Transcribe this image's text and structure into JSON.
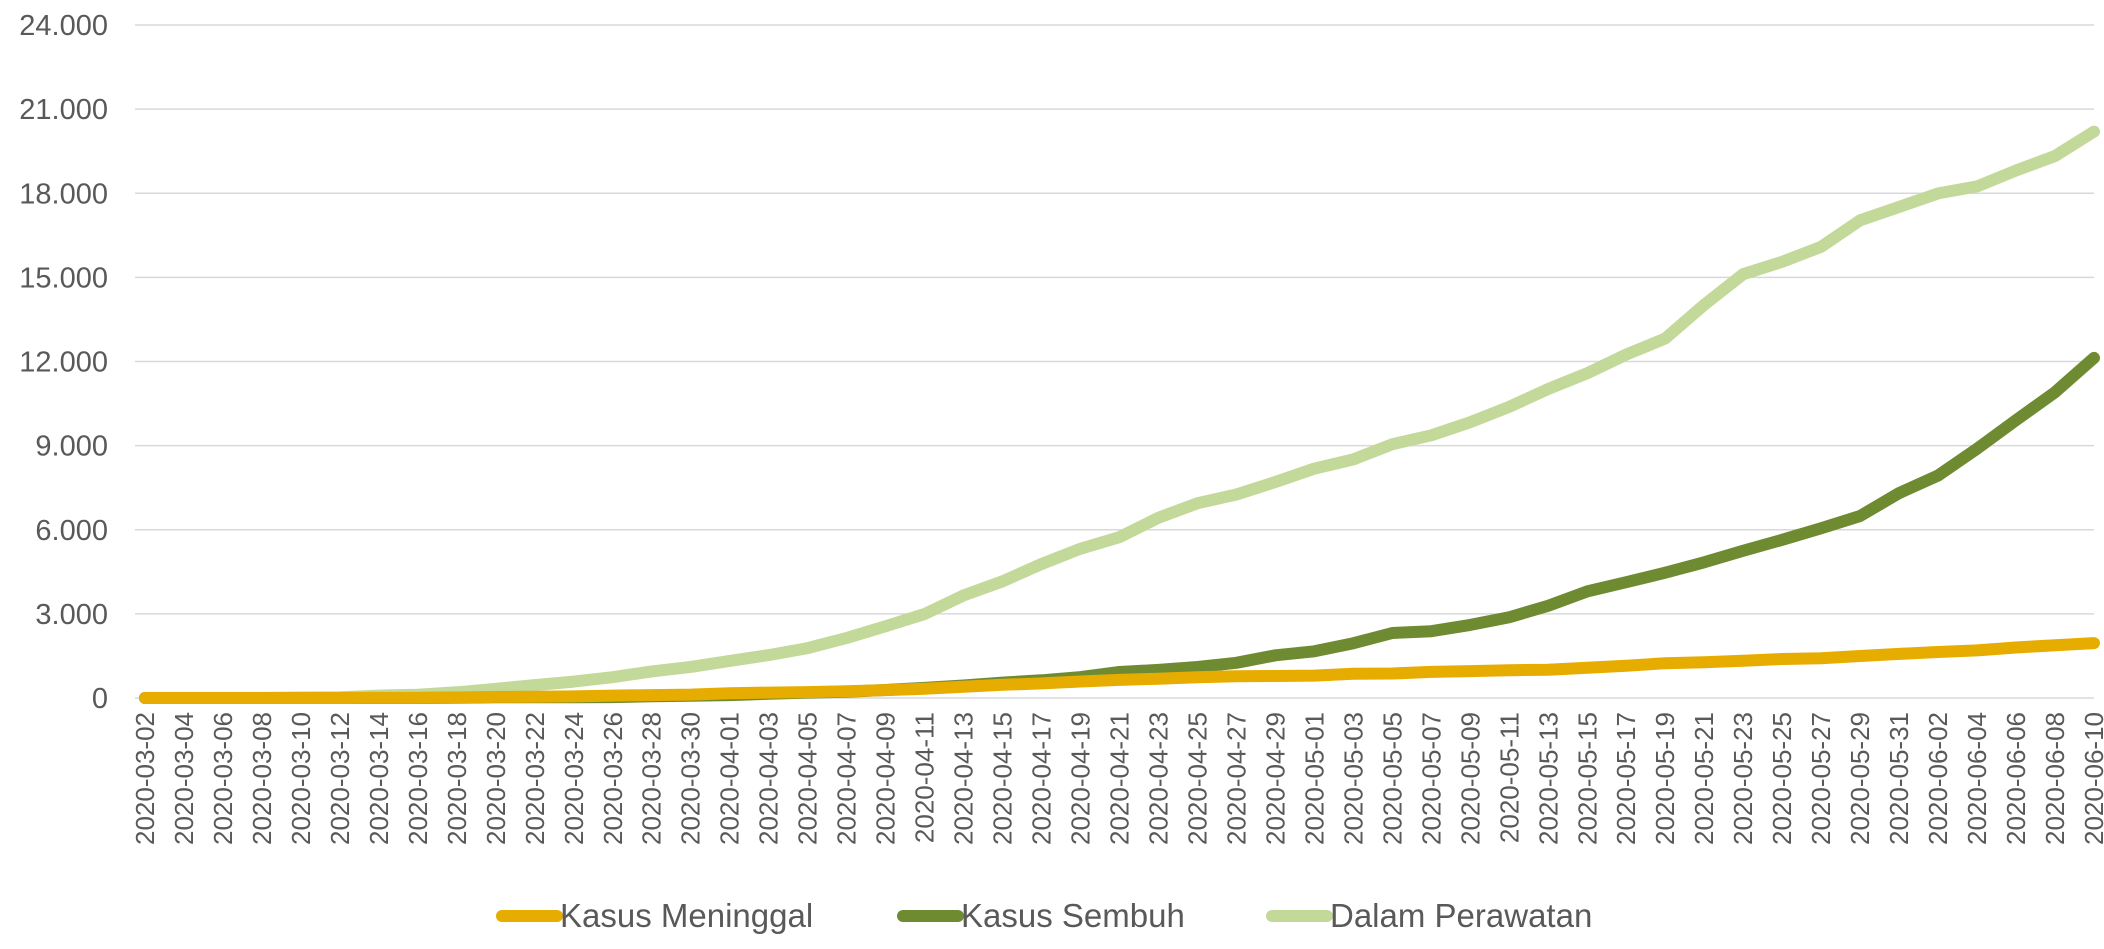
{
  "chart_data": {
    "type": "line",
    "title": "",
    "xlabel": "",
    "ylabel": "",
    "ylim": [
      0,
      24000
    ],
    "yticks": [
      "0",
      "3.000",
      "6.000",
      "9.000",
      "12.000",
      "15.000",
      "18.000",
      "21.000",
      "24.000"
    ],
    "ytick_values": [
      0,
      3000,
      6000,
      9000,
      12000,
      15000,
      18000,
      21000,
      24000
    ],
    "grid": true,
    "legend_position": "bottom",
    "x_range": [
      "2020-03-02",
      "2020-06-10"
    ],
    "x_tick_labels": [
      "2020-03-02",
      "2020-03-04",
      "2020-03-06",
      "2020-03-08",
      "2020-03-10",
      "2020-03-12",
      "2020-03-14",
      "2020-03-16",
      "2020-03-18",
      "2020-03-20",
      "2020-03-22",
      "2020-03-24",
      "2020-03-26",
      "2020-03-28",
      "2020-03-30",
      "2020-04-01",
      "2020-04-03",
      "2020-04-05",
      "2020-04-07",
      "2020-04-09",
      "2020-04-11",
      "2020-04-13",
      "2020-04-15",
      "2020-04-17",
      "2020-04-19",
      "2020-04-21",
      "2020-04-23",
      "2020-04-25",
      "2020-04-27",
      "2020-04-29",
      "2020-05-01",
      "2020-05-03",
      "2020-05-05",
      "2020-05-07",
      "2020-05-09",
      "2020-05-11",
      "2020-05-13",
      "2020-05-15",
      "2020-05-17",
      "2020-05-19",
      "2020-05-21",
      "2020-05-23",
      "2020-05-25",
      "2020-05-27",
      "2020-05-29",
      "2020-05-31",
      "2020-06-02",
      "2020-06-04",
      "2020-06-06",
      "2020-06-08",
      "2020-06-10"
    ],
    "x": [
      "2020-03-02",
      "2020-03-04",
      "2020-03-06",
      "2020-03-08",
      "2020-03-10",
      "2020-03-12",
      "2020-03-14",
      "2020-03-16",
      "2020-03-18",
      "2020-03-20",
      "2020-03-22",
      "2020-03-24",
      "2020-03-26",
      "2020-03-28",
      "2020-03-30",
      "2020-04-01",
      "2020-04-03",
      "2020-04-05",
      "2020-04-07",
      "2020-04-09",
      "2020-04-11",
      "2020-04-13",
      "2020-04-15",
      "2020-04-17",
      "2020-04-19",
      "2020-04-21",
      "2020-04-23",
      "2020-04-25",
      "2020-04-27",
      "2020-04-29",
      "2020-05-01",
      "2020-05-03",
      "2020-05-05",
      "2020-05-07",
      "2020-05-09",
      "2020-05-11",
      "2020-05-13",
      "2020-05-15",
      "2020-05-17",
      "2020-05-19",
      "2020-05-21",
      "2020-05-23",
      "2020-05-25",
      "2020-05-27",
      "2020-05-29",
      "2020-05-31",
      "2020-06-02",
      "2020-06-04",
      "2020-06-06",
      "2020-06-08",
      "2020-06-10"
    ],
    "series": [
      {
        "name": "Kasus Meninggal",
        "color": "#e6ac00",
        "values": [
          0,
          0,
          0,
          0,
          0,
          0,
          5,
          5,
          19,
          38,
          48,
          58,
          87,
          102,
          122,
          170,
          191,
          209,
          240,
          280,
          330,
          399,
          469,
          520,
          590,
          647,
          689,
          743,
          773,
          784,
          800,
          864,
          872,
          930,
          959,
          991,
          1007,
          1076,
          1148,
          1242,
          1278,
          1326,
          1391,
          1418,
          1496,
          1573,
          1641,
          1698,
          1801,
          1883,
          1959
        ]
      },
      {
        "name": "Kasus Sembuh",
        "color": "#6e8b32",
        "values": [
          0,
          0,
          0,
          0,
          0,
          0,
          0,
          0,
          11,
          29,
          30,
          30,
          31,
          64,
          81,
          103,
          150,
          192,
          222,
          286,
          359,
          446,
          548,
          631,
          747,
          926,
          1002,
          1107,
          1254,
          1522,
          1665,
          1954,
          2317,
          2381,
          2607,
          2881,
          3287,
          3803,
          4129,
          4467,
          4838,
          5249,
          5642,
          6057,
          6492,
          7308,
          7935,
          8892,
          9907,
          10904,
          12129
        ]
      },
      {
        "name": "Dalam Perawatan",
        "color": "#c2d99a",
        "values": [
          2,
          2,
          2,
          2,
          17,
          30,
          86,
          114,
          204,
          328,
          460,
          586,
          740,
          948,
          1108,
          1324,
          1531,
          1780,
          2140,
          2561,
          2994,
          3660,
          4160,
          4779,
          5325,
          5737,
          6428,
          6946,
          7256,
          7702,
          8180,
          8509,
          9050,
          9367,
          9835,
          10385,
          11024,
          11584,
          12245,
          12819,
          14022,
          15116,
          15556,
          16091,
          17037,
          17513,
          17995,
          18244,
          18811,
          19327,
          20197
        ]
      }
    ]
  }
}
